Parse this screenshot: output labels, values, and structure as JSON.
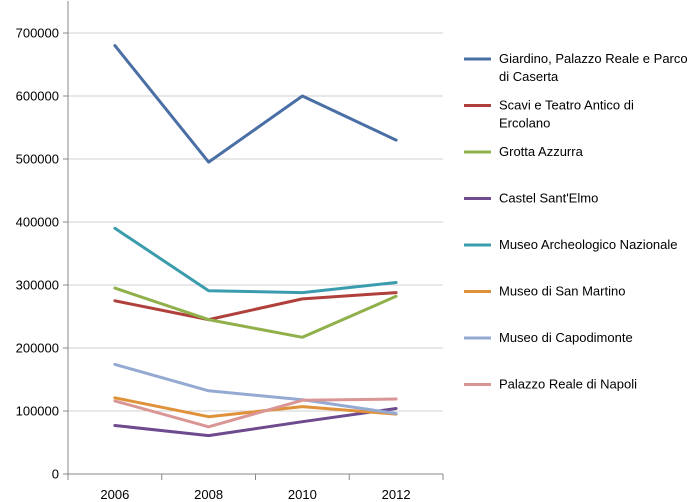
{
  "chart_data": {
    "type": "line",
    "title": "",
    "xlabel": "",
    "ylabel": "",
    "x": [
      "2006",
      "2008",
      "2010",
      "2012"
    ],
    "ylim": [
      0,
      700000
    ],
    "yticks": [
      0,
      100000,
      200000,
      300000,
      400000,
      500000,
      600000,
      700000
    ],
    "ytick_labels": [
      "0",
      "100000",
      "200000",
      "300000",
      "400000",
      "500000",
      "600000",
      "700000"
    ],
    "grid": "horizontal",
    "legend_position": "right",
    "series": [
      {
        "name": "Giardino, Palazzo Reale e Parco di Caserta",
        "name_lines": [
          "Giardino, Palazzo Reale e Parco",
          "di Caserta"
        ],
        "color": "#4a6fa5",
        "values": [
          680000,
          495000,
          600000,
          530000
        ]
      },
      {
        "name": "Scavi e Teatro Antico di Ercolano",
        "name_lines": [
          "Scavi e Teatro Antico di",
          "Ercolano"
        ],
        "color": "#b0403c",
        "values": [
          275000,
          245000,
          278000,
          288000
        ]
      },
      {
        "name": "Grotta Azzurra",
        "name_lines": [
          "Grotta Azzurra"
        ],
        "color": "#8fb04a",
        "values": [
          295000,
          245000,
          217000,
          282000
        ]
      },
      {
        "name": "Castel Sant'Elmo",
        "name_lines": [
          "Castel Sant'Elmo"
        ],
        "color": "#6e4a8e",
        "values": [
          77000,
          61000,
          83000,
          104000
        ]
      },
      {
        "name": "Museo Archeologico Nazionale",
        "name_lines": [
          "Museo Archeologico Nazionale"
        ],
        "color": "#3a9cad",
        "values": [
          390000,
          291000,
          288000,
          304000
        ]
      },
      {
        "name": "Museo di San Martino",
        "name_lines": [
          "Museo di San Martino"
        ],
        "color": "#e0923a",
        "values": [
          121000,
          91000,
          107000,
          95000
        ]
      },
      {
        "name": "Museo di Capodimonte",
        "name_lines": [
          "Museo di Capodimonte"
        ],
        "color": "#94aad2",
        "values": [
          174000,
          132000,
          118000,
          96000
        ]
      },
      {
        "name": "Palazzo Reale di Napoli",
        "name_lines": [
          "Palazzo Reale di Napoli"
        ],
        "color": "#d99694",
        "values": [
          116000,
          75000,
          117000,
          119000
        ]
      }
    ]
  }
}
